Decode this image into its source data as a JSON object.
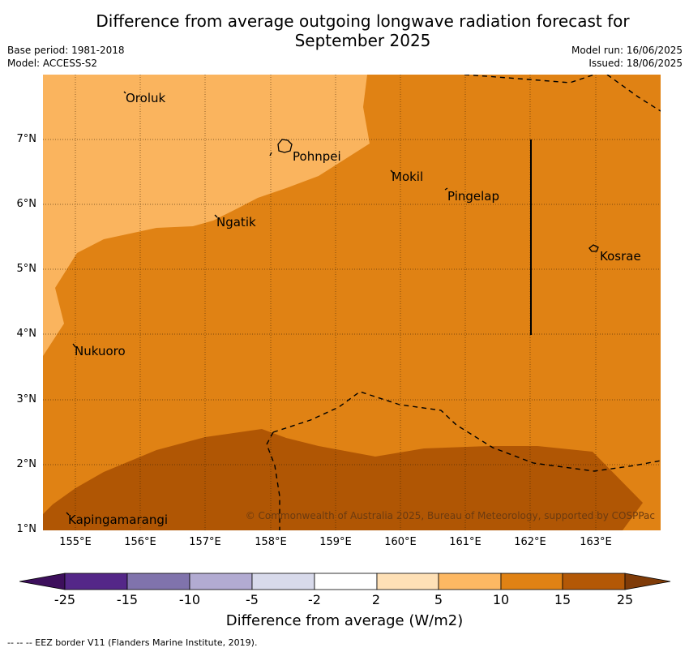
{
  "title_line1": "Difference from average outgoing longwave radiation forecast for",
  "title_line2": "September 2025",
  "base_period": "Base period: 1981-2018",
  "model": "Model: ACCESS-S2",
  "model_run": "Model run: 16/06/2025",
  "issued": "Issued: 18/06/2025",
  "lat_labels": [
    "7°N",
    "6°N",
    "5°N",
    "4°N",
    "3°N",
    "2°N",
    "1°N"
  ],
  "lon_labels": [
    "155°E",
    "156°E",
    "157°E",
    "158°E",
    "159°E",
    "160°E",
    "161°E",
    "162°E",
    "163°E"
  ],
  "places": {
    "oroluk": "Oroluk",
    "pohnpei": "Pohnpei",
    "mokil": "Mokil",
    "pingelap": "Pingelap",
    "ngatik": "Ngatik",
    "kosrae": "Kosrae",
    "nukuoro": "Nukuoro",
    "kapingamarangi": "Kapingamarangi"
  },
  "copyright": "© Commonwealth of Australia 2025, Bureau of Meteorology, supported by COSPPac",
  "colorbar": {
    "labels": [
      "-25",
      "-15",
      "-10",
      "-5",
      "-2",
      "2",
      "5",
      "10",
      "15",
      "25"
    ],
    "colors": [
      "#3d0f5c",
      "#542788",
      "#8073ac",
      "#b2abd2",
      "#d8daeb",
      "#ffffff",
      "#fee0b6",
      "#fdb863",
      "#e08214",
      "#b35806",
      "#7f3b08"
    ],
    "title": "Difference from average (W/m2)"
  },
  "footnote": "--  --  -- EEZ border V11 (Flanders Marine Institute, 2019)."
}
